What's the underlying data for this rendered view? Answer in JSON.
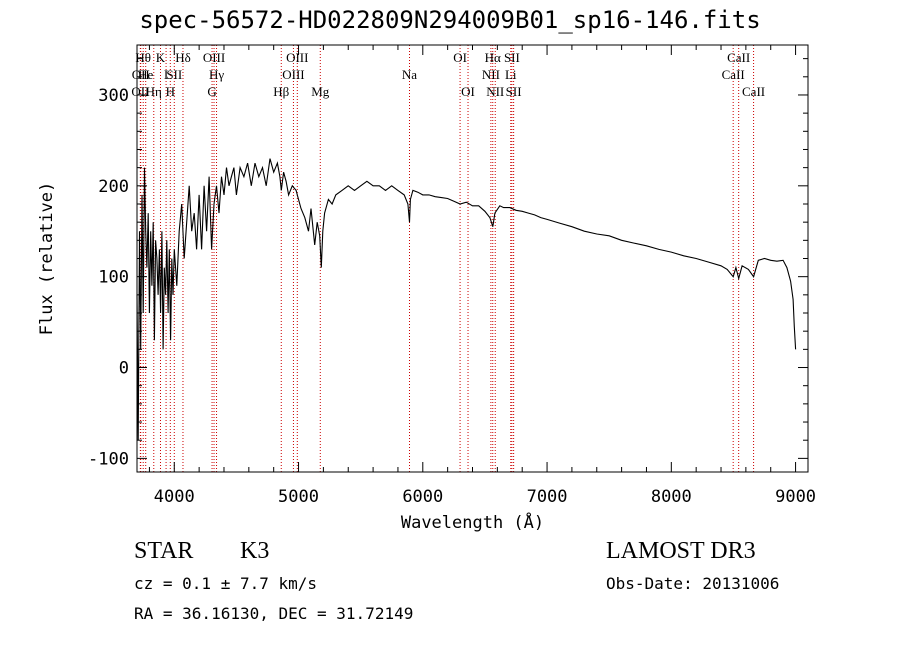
{
  "chart_data": {
    "type": "line",
    "title": "spec-56572-HD022809N294009B01_sp16-146.fits",
    "xlabel": "Wavelength (Å)",
    "ylabel": "Flux (relative)",
    "xlim": [
      3700,
      9100
    ],
    "ylim": [
      -115,
      355
    ],
    "xticks": [
      4000,
      5000,
      6000,
      7000,
      8000,
      9000
    ],
    "yticks": [
      -100,
      0,
      100,
      200,
      300
    ],
    "series": [
      {
        "name": "spectrum",
        "x": [
          3700,
          3710,
          3720,
          3730,
          3740,
          3750,
          3760,
          3770,
          3780,
          3790,
          3800,
          3810,
          3820,
          3830,
          3840,
          3850,
          3860,
          3870,
          3880,
          3890,
          3900,
          3910,
          3920,
          3930,
          3940,
          3950,
          3960,
          3970,
          3980,
          3990,
          4000,
          4020,
          4040,
          4060,
          4080,
          4100,
          4120,
          4140,
          4160,
          4180,
          4200,
          4220,
          4240,
          4260,
          4280,
          4300,
          4320,
          4340,
          4360,
          4380,
          4400,
          4420,
          4440,
          4460,
          4480,
          4500,
          4530,
          4560,
          4590,
          4620,
          4650,
          4680,
          4710,
          4740,
          4770,
          4800,
          4830,
          4850,
          4861,
          4880,
          4900,
          4920,
          4950,
          4980,
          5000,
          5020,
          5050,
          5080,
          5100,
          5130,
          5150,
          5170,
          5183,
          5195,
          5210,
          5240,
          5270,
          5300,
          5350,
          5400,
          5450,
          5500,
          5550,
          5600,
          5650,
          5700,
          5750,
          5800,
          5850,
          5880,
          5893,
          5900,
          5920,
          5960,
          6000,
          6050,
          6100,
          6150,
          6200,
          6250,
          6300,
          6350,
          6400,
          6450,
          6500,
          6540,
          6563,
          6580,
          6620,
          6650,
          6700,
          6750,
          6800,
          6850,
          6900,
          6950,
          7000,
          7100,
          7200,
          7300,
          7400,
          7500,
          7600,
          7700,
          7800,
          7900,
          8000,
          8100,
          8200,
          8300,
          8400,
          8450,
          8498,
          8520,
          8542,
          8570,
          8620,
          8662,
          8700,
          8750,
          8800,
          8850,
          8900,
          8930,
          8960,
          8980,
          8990,
          9000
        ],
        "y": [
          80,
          -80,
          150,
          20,
          190,
          60,
          220,
          150,
          110,
          170,
          60,
          150,
          90,
          160,
          30,
          140,
          120,
          80,
          130,
          60,
          150,
          20,
          110,
          80,
          140,
          60,
          130,
          30,
          120,
          80,
          130,
          90,
          150,
          180,
          120,
          160,
          200,
          150,
          170,
          130,
          190,
          130,
          200,
          150,
          210,
          130,
          180,
          200,
          170,
          210,
          190,
          220,
          200,
          210,
          220,
          190,
          220,
          210,
          225,
          200,
          225,
          210,
          220,
          200,
          230,
          215,
          225,
          210,
          195,
          215,
          205,
          190,
          200,
          195,
          185,
          175,
          165,
          150,
          175,
          135,
          160,
          145,
          110,
          150,
          170,
          185,
          180,
          190,
          195,
          200,
          195,
          200,
          205,
          200,
          200,
          195,
          200,
          195,
          190,
          180,
          160,
          185,
          195,
          193,
          190,
          190,
          188,
          187,
          186,
          183,
          180,
          182,
          178,
          178,
          172,
          165,
          155,
          170,
          178,
          176,
          176,
          173,
          172,
          170,
          168,
          165,
          163,
          159,
          155,
          150,
          147,
          145,
          140,
          137,
          134,
          130,
          127,
          123,
          120,
          116,
          112,
          108,
          100,
          110,
          98,
          112,
          108,
          100,
          118,
          120,
          118,
          117,
          118,
          110,
          95,
          75,
          45,
          20
        ]
      }
    ],
    "lines": [
      {
        "row": 3,
        "wl": 3727,
        "label": "OII"
      },
      {
        "row": 2,
        "wl": 3730,
        "label": "OII"
      },
      {
        "row": 1,
        "wl": 3750,
        "label": "Hθ"
      },
      {
        "row": 2,
        "wl": 3770,
        "label": "He"
      },
      {
        "row": 3,
        "wl": 3835,
        "label": "Hη"
      },
      {
        "row": 1,
        "wl": 3889,
        "label": "K"
      },
      {
        "row": 2,
        "wl": 3934,
        "label": "I"
      },
      {
        "row": 3,
        "wl": 3968,
        "label": "H"
      },
      {
        "row": 2,
        "wl": 4000,
        "label": "SII"
      },
      {
        "row": 1,
        "wl": 4070,
        "label": "Hδ"
      },
      {
        "row": 1,
        "wl": 4320,
        "label": "OIII"
      },
      {
        "row": 2,
        "wl": 4340,
        "label": "Hγ"
      },
      {
        "row": 3,
        "wl": 4304,
        "label": "G"
      },
      {
        "row": 3,
        "wl": 4861,
        "label": "Hβ"
      },
      {
        "row": 1,
        "wl": 4990,
        "label": "OIII"
      },
      {
        "row": 2,
        "wl": 4959,
        "label": "OIII"
      },
      {
        "row": 3,
        "wl": 5175,
        "label": "Mg"
      },
      {
        "row": 2,
        "wl": 5893,
        "label": "Na"
      },
      {
        "row": 1,
        "wl": 6300,
        "label": "OI"
      },
      {
        "row": 3,
        "wl": 6364,
        "label": "OI"
      },
      {
        "row": 1,
        "wl": 6563,
        "label": "Hα"
      },
      {
        "row": 2,
        "wl": 6548,
        "label": "NII"
      },
      {
        "row": 3,
        "wl": 6583,
        "label": "NII"
      },
      {
        "row": 1,
        "wl": 6717,
        "label": "SII"
      },
      {
        "row": 2,
        "wl": 6708,
        "label": "Li"
      },
      {
        "row": 3,
        "wl": 6731,
        "label": "SII"
      },
      {
        "row": 1,
        "wl": 8542,
        "label": "CaII"
      },
      {
        "row": 2,
        "wl": 8498,
        "label": "CaII"
      },
      {
        "row": 3,
        "wl": 8662,
        "label": "CaII"
      }
    ]
  },
  "info": {
    "class_label": "STAR",
    "subclass": "K3",
    "survey": "LAMOST DR3",
    "cz": "cz = 0.1 ± 7.7 km/s",
    "obs_date": "Obs-Date: 20131006",
    "radec": "RA =  36.16130, DEC =  31.72149"
  },
  "colors": {
    "line_marker": "#cc0000",
    "spectrum": "#000000"
  }
}
